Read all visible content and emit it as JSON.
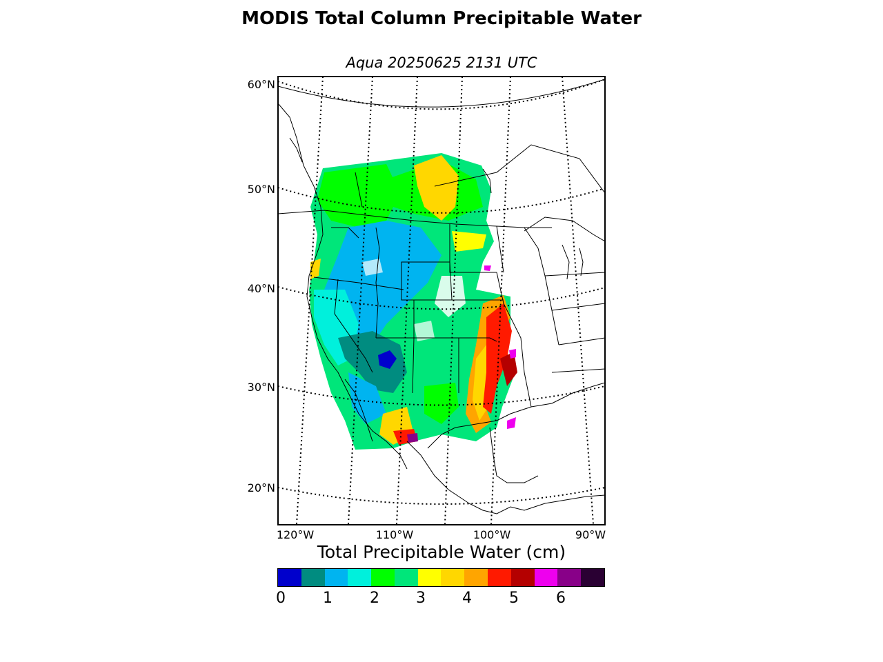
{
  "title": "MODIS Total Column Precipitable Water",
  "subtitle": "Aqua 20250625 2131 UTC",
  "map": {
    "lat_labels": [
      "60°N",
      "50°N",
      "40°N",
      "30°N",
      "20°N"
    ],
    "lon_labels": [
      "120°W",
      "110°W",
      "100°W",
      "90°W"
    ]
  },
  "colorbar": {
    "title": "Total Precipitable Water (cm)",
    "tick_labels": [
      "0",
      "1",
      "2",
      "3",
      "4",
      "5",
      "6"
    ],
    "colors": [
      "#0000cc",
      "#008c80",
      "#00b4f0",
      "#00f0dc",
      "#00ff00",
      "#00e67a",
      "#ffff00",
      "#ffd700",
      "#ffa500",
      "#ff1a00",
      "#b40000",
      "#ee00ee",
      "#880088",
      "#2a0033"
    ]
  }
}
